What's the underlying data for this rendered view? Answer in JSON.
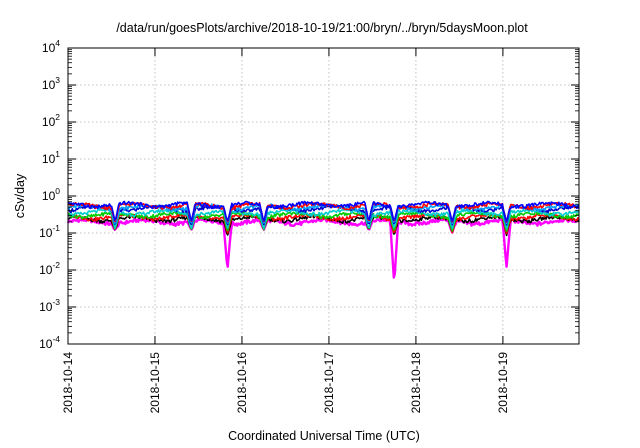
{
  "chart_data": {
    "type": "line",
    "title": "/data/run/goesPlots/archive/2018-10-19/21:00/bryn/../bryn/5daysMoon.plot",
    "xlabel": "Coordinated Universal Time (UTC)",
    "ylabel": "cSv/day",
    "y_scale": "log",
    "ylim_exponents": [
      -4,
      4
    ],
    "y_ticks": [
      {
        "base": "10",
        "exp": "4"
      },
      {
        "base": "10",
        "exp": "3"
      },
      {
        "base": "10",
        "exp": "2"
      },
      {
        "base": "10",
        "exp": "1"
      },
      {
        "base": "10",
        "exp": "0"
      },
      {
        "base": "10",
        "exp": "-1"
      },
      {
        "base": "10",
        "exp": "-2"
      },
      {
        "base": "10",
        "exp": "-3"
      },
      {
        "base": "10",
        "exp": "-4"
      }
    ],
    "x_ticks": [
      "2018-10-14",
      "2018-10-15",
      "2018-10-16",
      "2018-10-17",
      "2018-10-18",
      "2018-10-19"
    ],
    "xlim": [
      "2018-10-14",
      "2018-10-19T21:00"
    ],
    "grid": true,
    "legend": "none",
    "dip_events": [
      {
        "x": "2018-10-14T13:00",
        "min": 0.12
      },
      {
        "x": "2018-10-15T10:00",
        "min": 0.12
      },
      {
        "x": "2018-10-15T20:00",
        "min": 0.0105
      },
      {
        "x": "2018-10-16T06:00",
        "min": 0.12
      },
      {
        "x": "2018-10-17T11:00",
        "min": 0.12
      },
      {
        "x": "2018-10-17T18:00",
        "min": 0.0042
      },
      {
        "x": "2018-10-18T10:00",
        "min": 0.1
      },
      {
        "x": "2018-10-19T01:00",
        "min": 0.0115
      }
    ],
    "series": [
      {
        "color": "#ff00ff",
        "level": 0.2
      },
      {
        "color": "#000000",
        "level": 0.24
      },
      {
        "color": "#ff0000",
        "level": 0.27
      },
      {
        "color": "#00cc00",
        "level": 0.31
      },
      {
        "color": "#00cccc",
        "level": 0.36
      },
      {
        "color": "#0000cc",
        "level": 0.46
      },
      {
        "color": "#00a0ff",
        "level": 0.5
      },
      {
        "color": "#ff0000",
        "level": 0.55
      },
      {
        "color": "#0000ff",
        "level": 0.58
      }
    ]
  }
}
